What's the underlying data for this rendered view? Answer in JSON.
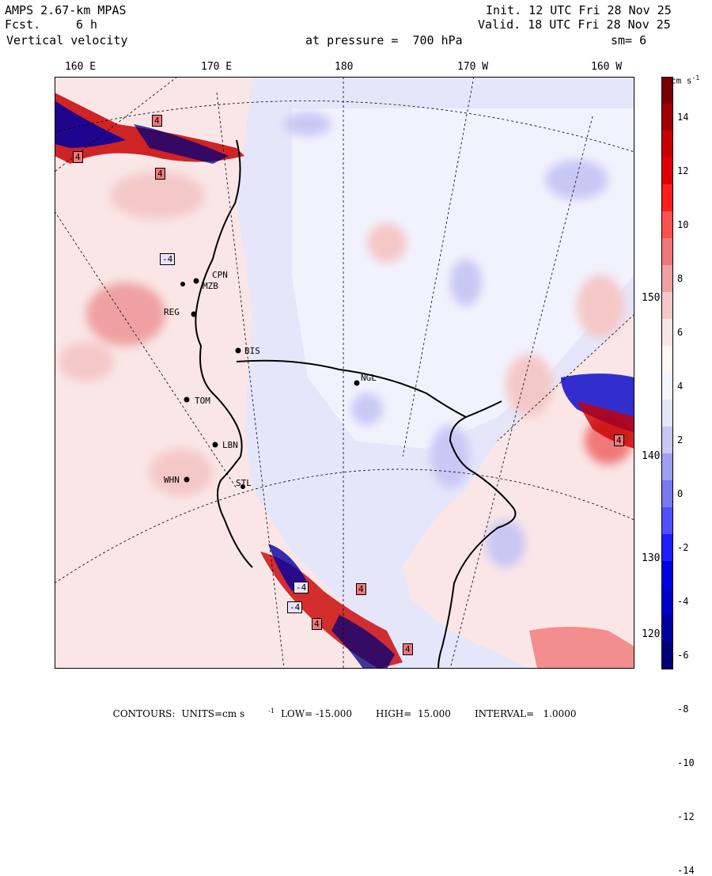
{
  "header": {
    "model": "AMPS 2.67-km MPAS",
    "fcst_label": "Fcst.",
    "fcst_value": "6 h",
    "field": "Vertical velocity",
    "init": "Init. 12 UTC Fri 28 Nov 25",
    "valid": "Valid. 18 UTC Fri 28 Nov 25",
    "level": "at pressure =  700 hPa",
    "smooth": "sm= 6"
  },
  "longitude_labels": [
    "160 E",
    "170 E",
    "180",
    "170 W",
    "160 W"
  ],
  "latitude_labels": [
    "150 W",
    "140 W",
    "130 W",
    "120 W"
  ],
  "stations": [
    {
      "code": "CPN"
    },
    {
      "code": "MZB"
    },
    {
      "code": "REG"
    },
    {
      "code": "BIS"
    },
    {
      "code": "NGL"
    },
    {
      "code": "TOM"
    },
    {
      "code": "LBN"
    },
    {
      "code": "WHN"
    },
    {
      "code": "STL"
    }
  ],
  "contour_labels": [
    "4",
    "4",
    "4",
    "-4",
    "4",
    "-4",
    "-4",
    "4",
    "4",
    "4"
  ],
  "colorbar": {
    "unit": "cm s",
    "unit_exp": "-1",
    "ticks": [
      "14",
      "12",
      "10",
      "8",
      "6",
      "4",
      "2",
      "0",
      "-2",
      "-4",
      "-6",
      "-8",
      "-10",
      "-12",
      "-14"
    ],
    "colors": [
      "#7a0000",
      "#a00000",
      "#c80000",
      "#e10000",
      "#ff1e1e",
      "#ff5050",
      "#f07878",
      "#f0a0a0",
      "#f5c8c8",
      "#fae6e6",
      "#fff5f5",
      "#f5f5ff",
      "#e6e6fa",
      "#c8c8f5",
      "#a0a0f0",
      "#7878f0",
      "#5050ff",
      "#1e1eff",
      "#0000e1",
      "#0000c8",
      "#0000a0",
      "#00007a"
    ]
  },
  "footer": {
    "contours": "CONTOURS:",
    "units_prefix": "UNITS=cm s",
    "units_exp": "-1",
    "low": "LOW= -15.000",
    "high": "HIGH=  15.000",
    "interval": "INTERVAL=   1.0000"
  }
}
